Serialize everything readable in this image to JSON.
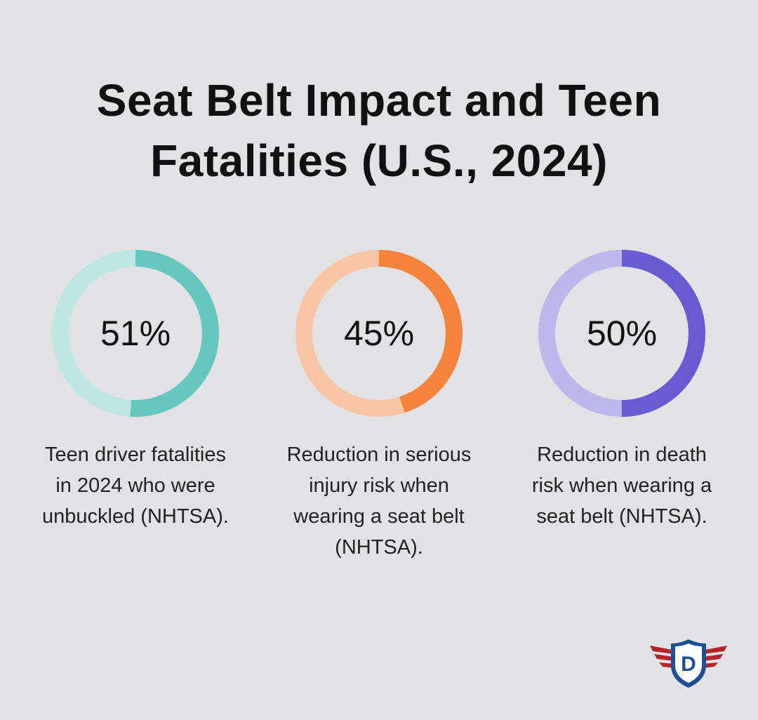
{
  "title_line1": "Seat Belt Impact and Teen",
  "title_line2": "Fatalities (U.S., 2024)",
  "chart_data": [
    {
      "type": "pie",
      "value": 51,
      "label": "51%",
      "caption": [
        "Teen driver fatalities",
        "in 2024 who were",
        "unbuckled (NHTSA)."
      ],
      "colors": {
        "filled": "#66c7c0",
        "track": "#bee7e4"
      }
    },
    {
      "type": "pie",
      "value": 45,
      "label": "45%",
      "caption": [
        "Reduction in serious",
        "injury risk when",
        "wearing a seat belt",
        "(NHTSA)."
      ],
      "colors": {
        "filled": "#f5853e",
        "track": "#f8c6a4"
      }
    },
    {
      "type": "pie",
      "value": 50,
      "label": "50%",
      "caption": [
        "Reduction in death",
        "risk when wearing a",
        "seat belt (NHTSA)."
      ],
      "colors": {
        "filled": "#675bd1",
        "track": "#bdb7ec"
      }
    }
  ],
  "logo": {
    "icon": "shield-wings-icon",
    "letter": "D",
    "colors": {
      "wings": "#b3242b",
      "shield": "#1e4f93",
      "inner": "#ffffff"
    }
  }
}
